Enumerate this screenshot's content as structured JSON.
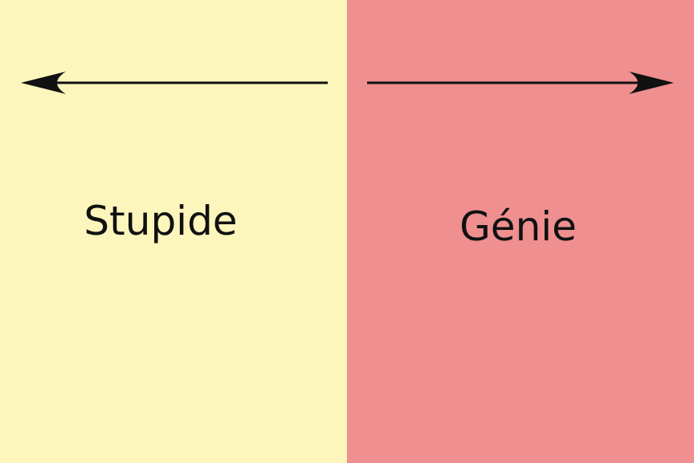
{
  "colors": {
    "left_background": "#fcf6bc",
    "right_background": "#ef8f90",
    "arrow": "#111111"
  },
  "left": {
    "label": "Stupide",
    "arrow_icon": "arrow-left-icon"
  },
  "right": {
    "label": "Génie",
    "arrow_icon": "arrow-right-icon"
  }
}
